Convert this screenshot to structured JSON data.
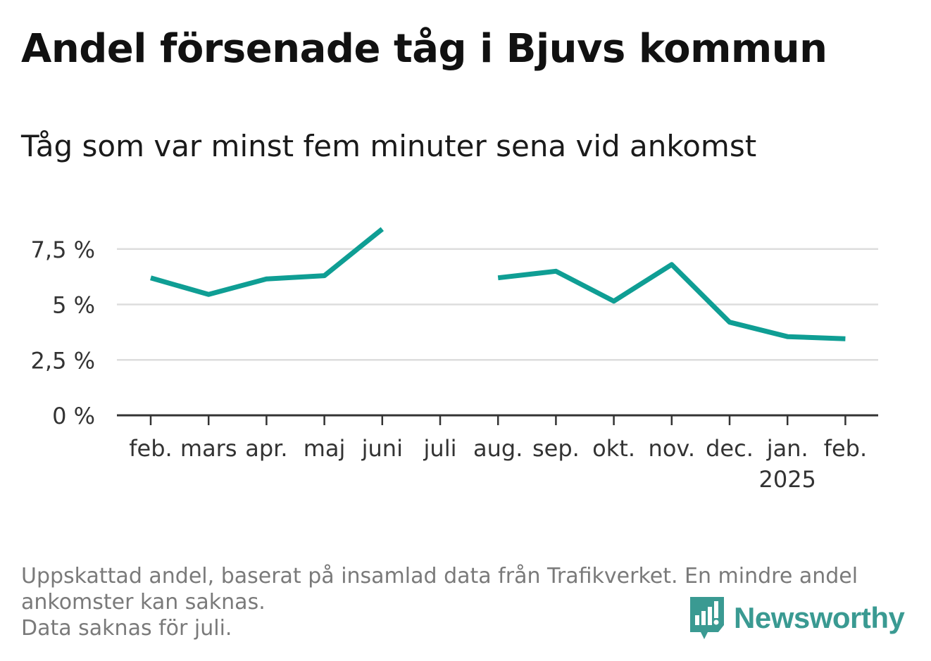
{
  "title": "Andel försenade tåg i Bjuvs kommun",
  "subtitle": "Tåg som var minst fem minuter sena vid ankomst",
  "footer": {
    "note_line1": "Uppskattad andel, baserat på insamlad data från Trafikverket. En mindre andel",
    "note_line2": "ankomster kan saknas.",
    "note_line3": "Data saknas för juli."
  },
  "brand": {
    "name": "Newsworthy",
    "icon": "newsworthy-logo-icon",
    "color": "#3a9a92"
  },
  "chart_data": {
    "type": "line",
    "title": "Andel försenade tåg i Bjuvs kommun",
    "subtitle": "Tåg som var minst fem minuter sena vid ankomst",
    "xlabel": "",
    "ylabel": "",
    "categories": [
      "feb.",
      "mars",
      "apr.",
      "maj",
      "juni",
      "juli",
      "aug.",
      "sep.",
      "okt.",
      "nov.",
      "dec.",
      "jan.",
      "feb."
    ],
    "category_sublabels": [
      "",
      "",
      "",
      "",
      "",
      "",
      "",
      "",
      "",
      "",
      "",
      "2025",
      ""
    ],
    "series": [
      {
        "values": [
          6.2,
          5.45,
          6.15,
          6.3,
          8.4,
          null,
          6.2,
          6.5,
          5.15,
          6.8,
          4.2,
          3.55,
          3.45
        ],
        "color": "#0f9e94"
      }
    ],
    "ylim": [
      0,
      8.5
    ],
    "yticks": [
      0,
      2.5,
      5,
      7.5
    ],
    "ytick_labels": [
      "0 %",
      "2,5 %",
      "5 %",
      "7,5 %"
    ],
    "grid": true,
    "legend": "none",
    "missing": [
      "juli"
    ]
  }
}
